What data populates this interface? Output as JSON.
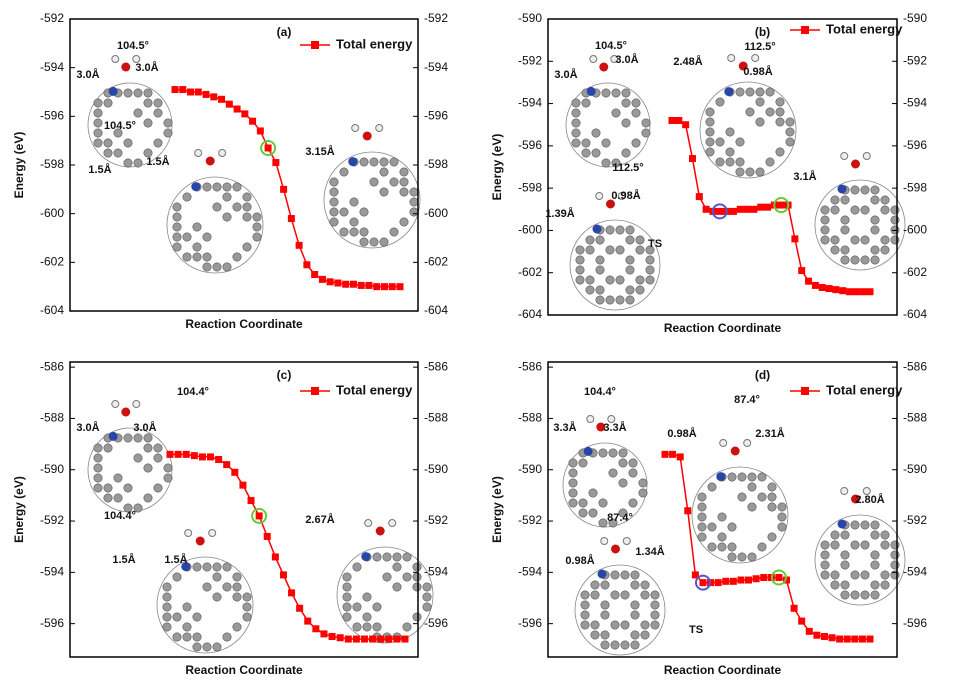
{
  "chart_data": [
    {
      "type": "line",
      "label": "(a)",
      "x_label": "Reaction Coordinate",
      "y_label": "Energy (eV)",
      "series": [
        {
          "name": "Total energy",
          "color": "#ff0000",
          "values": [
            -594.9,
            -594.9,
            -595.0,
            -595.0,
            -595.1,
            -595.2,
            -595.3,
            -595.5,
            -595.7,
            -595.9,
            -596.2,
            -596.6,
            -597.3,
            -597.9,
            -599.0,
            -600.2,
            -601.3,
            -602.1,
            -602.5,
            -602.7,
            -602.8,
            -602.85,
            -602.9,
            -602.9,
            -602.95,
            -602.95,
            -603.0,
            -603.0,
            -603.0,
            -603.0
          ]
        }
      ],
      "ylim": [
        -604,
        -592
      ],
      "yticks": [
        -604,
        -602,
        -600,
        -598,
        -596,
        -594,
        -592
      ],
      "annotations": [
        "104.5°",
        "3.0Å",
        "3.0Å",
        "104.5°",
        "1.5Å",
        "1.5Å",
        "3.15Å"
      ]
    },
    {
      "type": "line",
      "label": "(b)",
      "x_label": "Reaction Coordinate",
      "y_label": "Energy (eV)",
      "series": [
        {
          "name": "Total energy",
          "color": "#ff0000",
          "values": [
            -594.8,
            -594.8,
            -595.0,
            -596.6,
            -598.4,
            -599.0,
            -599.1,
            -599.1,
            -599.1,
            -599.1,
            -599.0,
            -599.0,
            -599.0,
            -598.9,
            -598.9,
            -598.8,
            -598.8,
            -598.8,
            -600.4,
            -601.9,
            -602.4,
            -602.6,
            -602.7,
            -602.75,
            -602.8,
            -602.85,
            -602.9,
            -602.9,
            -602.9,
            -602.9
          ]
        }
      ],
      "ylim": [
        -604,
        -590
      ],
      "yticks": [
        -604,
        -602,
        -600,
        -598,
        -596,
        -594,
        -592,
        -590
      ],
      "annotations": [
        "104.5°",
        "3.0Å",
        "3.0Å",
        "112.5°",
        "2.48Å",
        "0.98Å",
        "112.5°",
        "1.39Å",
        "0.98Å",
        "TS",
        "3.1Å"
      ]
    },
    {
      "type": "line",
      "label": "(c)",
      "x_label": "Reaction Coordinate",
      "y_label": "Energy (eV)",
      "series": [
        {
          "name": "Total energy",
          "color": "#ff0000",
          "values": [
            -589.4,
            -589.4,
            -589.4,
            -589.45,
            -589.5,
            -589.5,
            -589.6,
            -589.8,
            -590.1,
            -590.6,
            -591.2,
            -591.8,
            -592.6,
            -593.4,
            -594.1,
            -594.8,
            -595.4,
            -595.9,
            -596.2,
            -596.4,
            -596.5,
            -596.55,
            -596.6,
            -596.6,
            -596.6,
            -596.6,
            -596.6,
            -596.6,
            -596.6,
            -596.6
          ]
        }
      ],
      "ylim": [
        -597.3,
        -585.8
      ],
      "yticks": [
        -596,
        -594,
        -592,
        -590,
        -588,
        -586
      ],
      "annotations": [
        "104.4°",
        "3.0Å",
        "3.0Å",
        "104.4°",
        "1.5Å",
        "1.5Å",
        "2.67Å"
      ]
    },
    {
      "type": "line",
      "label": "(d)",
      "x_label": "Reaction Coordinate",
      "y_label": "Energy (eV)",
      "series": [
        {
          "name": "Total energy",
          "color": "#ff0000",
          "values": [
            -589.4,
            -589.4,
            -589.5,
            -591.6,
            -594.1,
            -594.4,
            -594.4,
            -594.4,
            -594.35,
            -594.35,
            -594.3,
            -594.3,
            -594.25,
            -594.2,
            -594.2,
            -594.2,
            -594.3,
            -595.4,
            -595.9,
            -596.3,
            -596.45,
            -596.5,
            -596.55,
            -596.6,
            -596.6,
            -596.6,
            -596.6,
            -596.6
          ]
        }
      ],
      "ylim": [
        -597.3,
        -585.8
      ],
      "yticks": [
        -596,
        -594,
        -592,
        -590,
        -588,
        -586
      ],
      "annotations": [
        "104.4°",
        "3.3Å",
        "3.3Å",
        "87.4°",
        "0.98Å",
        "2.31Å",
        "87.4°",
        "0.98Å",
        "1.34Å",
        "TS",
        "2.80Å"
      ]
    }
  ]
}
